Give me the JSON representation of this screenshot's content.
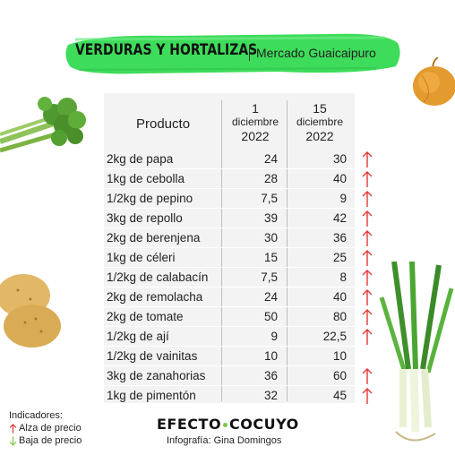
{
  "header": {
    "title": "VERDURAS Y HORTALIZAS",
    "subtitle": "Mercado Guaicaipuro"
  },
  "table": {
    "col_product": "Producto",
    "col_date1": {
      "day": "1",
      "month": "diciembre",
      "year": "2022"
    },
    "col_date2": {
      "day": "15",
      "month": "diciembre",
      "year": "2022"
    },
    "rows": [
      {
        "product": "2kg de papa",
        "v1": "24",
        "v2": "30",
        "trend": "up"
      },
      {
        "product": "1kg de cebolla",
        "v1": "28",
        "v2": "40",
        "trend": "up"
      },
      {
        "product": "1/2kg de pepino",
        "v1": "7,5",
        "v2": "9",
        "trend": "up"
      },
      {
        "product": "3kg de repollo",
        "v1": "39",
        "v2": "42",
        "trend": "up"
      },
      {
        "product": "2kg de berenjena",
        "v1": "30",
        "v2": "36",
        "trend": "up"
      },
      {
        "product": "1kg de céleri",
        "v1": "15",
        "v2": "25",
        "trend": "up"
      },
      {
        "product": "1/2kg de calabacín",
        "v1": "7,5",
        "v2": "8",
        "trend": "up"
      },
      {
        "product": "2kg de remolacha",
        "v1": "24",
        "v2": "40",
        "trend": "up"
      },
      {
        "product": "2kg de tomate",
        "v1": "50",
        "v2": "80",
        "trend": "up"
      },
      {
        "product": "1/2kg de ají",
        "v1": "9",
        "v2": "22,5",
        "trend": "up"
      },
      {
        "product": "1/2kg de vainitas",
        "v1": "10",
        "v2": "10",
        "trend": "none"
      },
      {
        "product": "3kg de zanahorias",
        "v1": "36",
        "v2": "60",
        "trend": "up"
      },
      {
        "product": "1kg de pimentón",
        "v1": "32",
        "v2": "45",
        "trend": "up"
      }
    ]
  },
  "legend": {
    "title": "Indicadores:",
    "up_label": "Alza de precio",
    "down_label": "Baja de precio",
    "up_icon": "arrow-up-icon",
    "down_icon": "arrow-down-icon"
  },
  "footer": {
    "logo_left": "EFECTO",
    "logo_right": "COCUYO",
    "credit": "Infografía: Gina Domingos"
  },
  "colors": {
    "brush_green": "#3ddc5a",
    "table_bg": "#f3f3f3",
    "arrow_up": "#e53935",
    "arrow_down": "#7ac943",
    "logo_dot": "#7ac943"
  }
}
